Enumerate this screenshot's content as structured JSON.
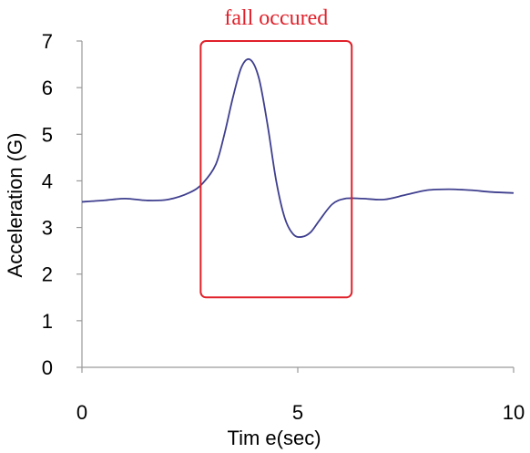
{
  "chart_data": {
    "type": "line",
    "title": "",
    "xlabel": "Tim e(sec)",
    "ylabel": "Acceleration (G)",
    "xlim": [
      0,
      10
    ],
    "ylim": [
      0,
      7
    ],
    "x_ticks": [
      "0",
      "5",
      "10"
    ],
    "y_ticks": [
      "0",
      "1",
      "2",
      "3",
      "4",
      "5",
      "6",
      "7"
    ],
    "grid": false,
    "legend": "none",
    "series": [
      {
        "color": "#3f3f8f",
        "x": [
          0,
          0.5,
          1.0,
          1.5,
          2.0,
          2.5,
          2.8,
          3.1,
          3.3,
          3.5,
          3.7,
          3.9,
          4.1,
          4.3,
          4.5,
          4.7,
          4.9,
          5.1,
          5.3,
          5.5,
          5.8,
          6.1,
          6.5,
          7.0,
          7.5,
          8.0,
          8.5,
          9.0,
          9.5,
          10.0
        ],
        "y": [
          3.55,
          3.58,
          3.62,
          3.58,
          3.6,
          3.75,
          3.95,
          4.35,
          5.0,
          5.8,
          6.45,
          6.6,
          6.2,
          5.2,
          4.0,
          3.2,
          2.85,
          2.8,
          2.9,
          3.15,
          3.5,
          3.62,
          3.62,
          3.6,
          3.7,
          3.8,
          3.82,
          3.8,
          3.76,
          3.74
        ]
      }
    ],
    "annotations": [
      {
        "text": "fall occured",
        "color": "#e0202a",
        "x_range": [
          2.75,
          6.25
        ],
        "y_range": [
          1.5,
          7.0
        ]
      }
    ]
  }
}
